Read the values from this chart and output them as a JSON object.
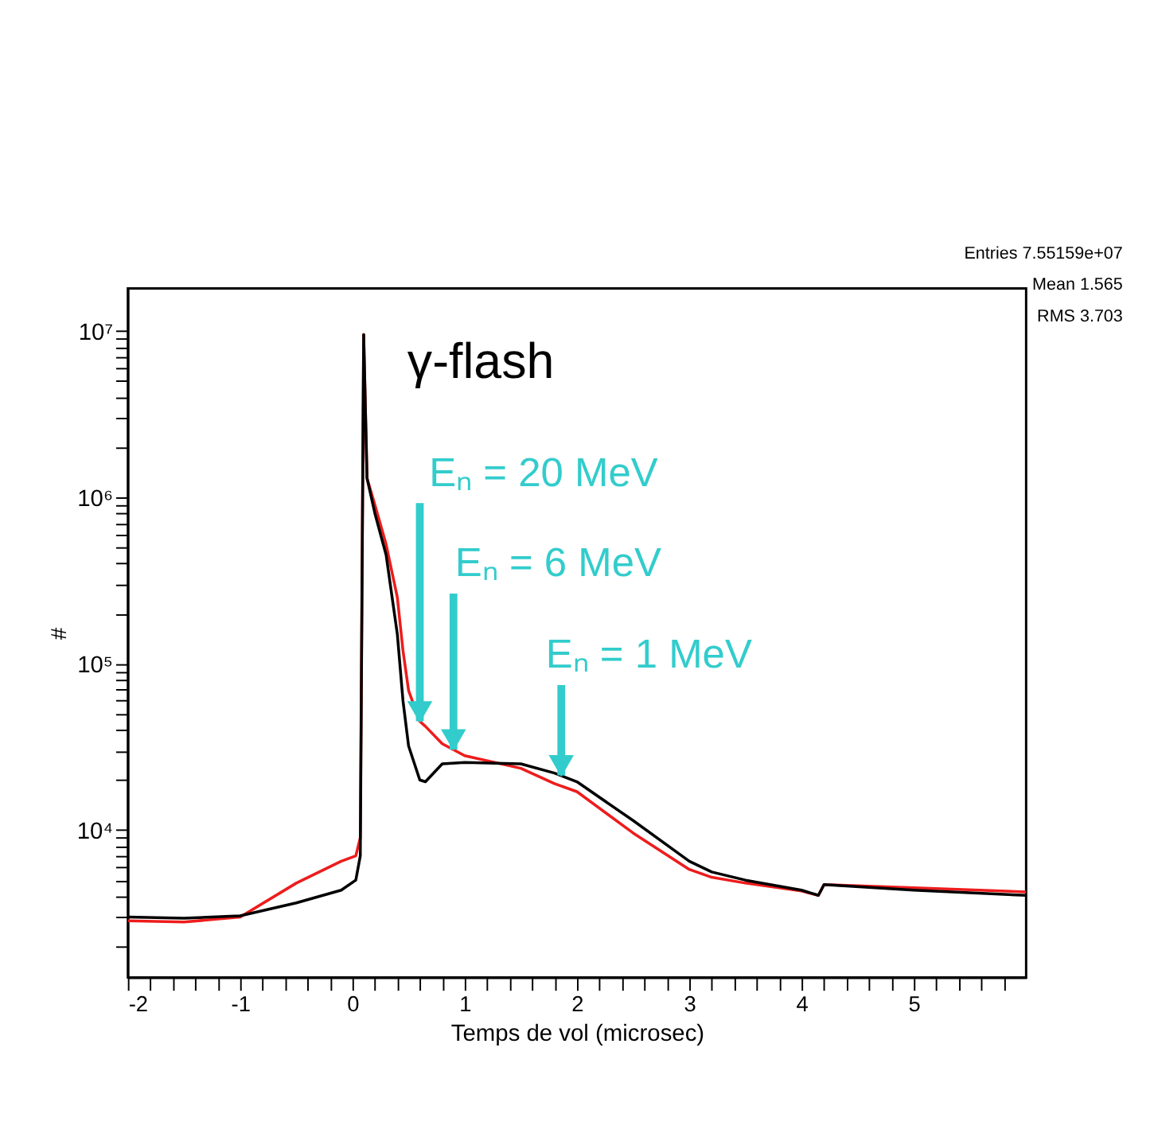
{
  "chart_data": {
    "type": "line",
    "xlabel": "Temps de vol (microsec)",
    "ylabel": "#",
    "xlim": [
      -2,
      6
    ],
    "ylim": [
      1300,
      18000000
    ],
    "log": "y",
    "grid": false,
    "legend": false,
    "marker": "none",
    "line_style": "solid",
    "xticks": [
      -2,
      {
        "value": -1.8,
        "label": null
      },
      {
        "value": -1.6,
        "label": null
      },
      {
        "value": -1.4,
        "label": null
      },
      {
        "value": -1.2,
        "label": null
      },
      -1,
      {
        "value": -0.8,
        "label": null
      },
      {
        "value": -0.6,
        "label": null
      },
      {
        "value": -0.4,
        "label": null
      },
      {
        "value": -0.2,
        "label": null
      },
      0,
      {
        "value": 0.2,
        "label": null
      },
      {
        "value": 0.4,
        "label": null
      },
      {
        "value": 0.6,
        "label": null
      },
      {
        "value": 0.8,
        "label": null
      },
      1,
      {
        "value": 1.2,
        "label": null
      },
      {
        "value": 1.4,
        "label": null
      },
      {
        "value": 1.6,
        "label": null
      },
      {
        "value": 1.8,
        "label": null
      },
      2,
      {
        "value": 2.2,
        "label": null
      },
      {
        "value": 2.4,
        "label": null
      },
      {
        "value": 2.6,
        "label": null
      },
      {
        "value": 2.8,
        "label": null
      },
      3,
      {
        "value": 3.2,
        "label": null
      },
      {
        "value": 3.4,
        "label": null
      },
      {
        "value": 3.6,
        "label": null
      },
      {
        "value": 3.8,
        "label": null
      },
      4,
      {
        "value": 4.2,
        "label": null
      },
      {
        "value": 4.4,
        "label": null
      },
      {
        "value": 4.6,
        "label": null
      },
      {
        "value": 4.8,
        "label": null
      },
      5,
      {
        "value": 5.2,
        "label": null
      },
      {
        "value": 5.4,
        "label": null
      },
      {
        "value": 5.6,
        "label": null
      },
      {
        "value": 5.8,
        "label": null
      }
    ],
    "yticks": [
      {
        "value": 2000,
        "label": null
      },
      {
        "value": 3000,
        "label": null
      },
      {
        "value": 4000,
        "label": null
      },
      {
        "value": 5000,
        "label": null
      },
      {
        "value": 6000,
        "label": null
      },
      {
        "value": 7000,
        "label": null
      },
      {
        "value": 8000,
        "label": null
      },
      {
        "value": 9000,
        "label": null
      },
      {
        "value": 10000,
        "label": "10⁴"
      },
      {
        "value": 20000,
        "label": null
      },
      {
        "value": 30000,
        "label": null
      },
      {
        "value": 40000,
        "label": null
      },
      {
        "value": 50000,
        "label": null
      },
      {
        "value": 60000,
        "label": null
      },
      {
        "value": 70000,
        "label": null
      },
      {
        "value": 80000,
        "label": null
      },
      {
        "value": 90000,
        "label": null
      },
      {
        "value": 100000,
        "label": "10⁵"
      },
      {
        "value": 200000,
        "label": null
      },
      {
        "value": 300000,
        "label": null
      },
      {
        "value": 400000,
        "label": null
      },
      {
        "value": 500000,
        "label": null
      },
      {
        "value": 600000,
        "label": null
      },
      {
        "value": 700000,
        "label": null
      },
      {
        "value": 800000,
        "label": null
      },
      {
        "value": 900000,
        "label": null
      },
      {
        "value": 1000000,
        "label": "10⁶"
      },
      {
        "value": 2000000,
        "label": null
      },
      {
        "value": 3000000,
        "label": null
      },
      {
        "value": 4000000,
        "label": null
      },
      {
        "value": 5000000,
        "label": null
      },
      {
        "value": 6000000,
        "label": null
      },
      {
        "value": 7000000,
        "label": null
      },
      {
        "value": 8000000,
        "label": null
      },
      {
        "value": 9000000,
        "label": null
      },
      {
        "value": 10000000,
        "label": "10⁷"
      }
    ],
    "x": [
      -2,
      -1.5,
      -1,
      -0.5,
      -0.1,
      0.03,
      0.07,
      0.1,
      0.13,
      0.2,
      0.3,
      0.4,
      0.45,
      0.5,
      0.6,
      0.65,
      0.8,
      1.0,
      1.5,
      1.8,
      2.0,
      2.5,
      3.0,
      3.2,
      3.5,
      4.0,
      4.15,
      4.2,
      5.0,
      6.0
    ],
    "series": [
      {
        "color": "#ee1c1c",
        "values": [
          2850,
          2800,
          3000,
          4800,
          6500,
          7000,
          9000,
          9500000,
          1300000,
          900000,
          520000,
          250000,
          120000,
          69000,
          45000,
          42000,
          33000,
          28000,
          23500,
          19000,
          17000,
          9600,
          5800,
          5200,
          4800,
          4300,
          4050,
          4700,
          4500,
          4250
        ]
      },
      {
        "color": "#000000",
        "values": [
          3000,
          2950,
          3050,
          3650,
          4350,
          5000,
          7000,
          9500000,
          1300000,
          800000,
          450000,
          150000,
          60000,
          32000,
          20000,
          19500,
          25000,
          25500,
          25000,
          22000,
          19500,
          11400,
          6500,
          5600,
          5000,
          4350,
          4050,
          4700,
          4350,
          4050
        ]
      }
    ],
    "annotations": [
      {
        "text": "γ-flash",
        "x": 0.1,
        "y": 9500000
      },
      {
        "text": "Eₙ = 20 MeV",
        "x": 0.6,
        "y": 45000
      },
      {
        "text": "Eₙ = 6 MeV",
        "x": 0.9,
        "y": 30500
      },
      {
        "text": "Eₙ = 1 MeV",
        "x": 1.86,
        "y": 21300
      },
      "Entries 7.55159e+07",
      "Mean 1.565",
      "RMS 3.703"
    ]
  }
}
